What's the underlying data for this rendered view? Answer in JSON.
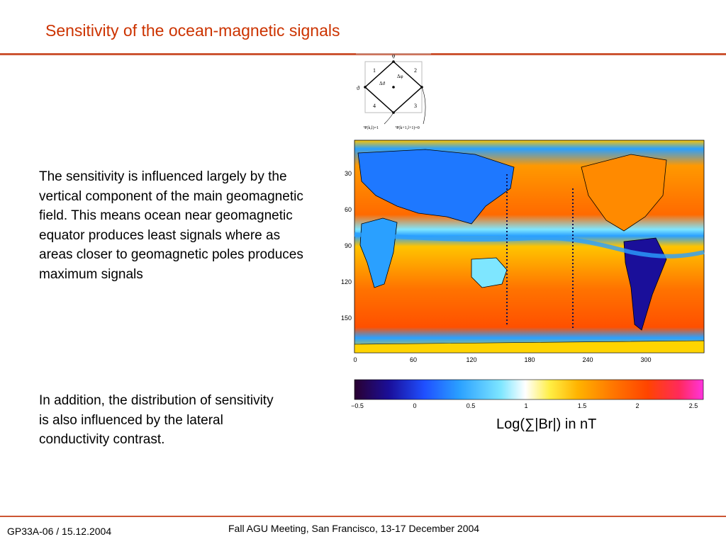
{
  "slide": {
    "title": "Sensitivity of the ocean-magnetic signals",
    "paragraph_1": "The sensitivity is influenced largely by the vertical component of the main geomagnetic field. This means ocean near geomagnetic equator produces least signals where as areas closer to geomagnetic poles produces maximum signals",
    "paragraph_2": "In addition, the distribution of sensitivity is also influenced by the lateral conductivity contrast.",
    "colorbar_caption": "Log(∑|Br|) in nT"
  },
  "diagram": {
    "top_label": "φ",
    "left_label": "ϑ",
    "cell_labels": [
      "1",
      "2",
      "3",
      "4"
    ],
    "delta_phi": "Δφ",
    "delta_theta": "Δϑ",
    "bottom_left_label": "Ψ(k,l)=1",
    "bottom_right_label": "Ψ(k+1,l+1)=0"
  },
  "map": {
    "y_ticks": [
      "30",
      "60",
      "90",
      "120",
      "150"
    ],
    "x_ticks": [
      "0",
      "60",
      "120",
      "180",
      "240",
      "300"
    ]
  },
  "colorbar": {
    "ticks": [
      "−0.5",
      "0",
      "0.5",
      "1",
      "1.5",
      "2",
      "2.5"
    ],
    "colors": [
      "#2a0030",
      "#1a0f9a",
      "#1f4fff",
      "#2aa0ff",
      "#7ee6ff",
      "#ffffff",
      "#ffee44",
      "#ffb300",
      "#ff7700",
      "#ff4400",
      "#ff2a5a",
      "#ff33dd"
    ]
  },
  "footer": {
    "left": "GP33A-06 / 15.12.2004",
    "center": "Fall AGU Meeting, San Francisco, 13-17 December 2004"
  },
  "colors": {
    "title": "#cc3300",
    "rule": "#cc5533"
  }
}
